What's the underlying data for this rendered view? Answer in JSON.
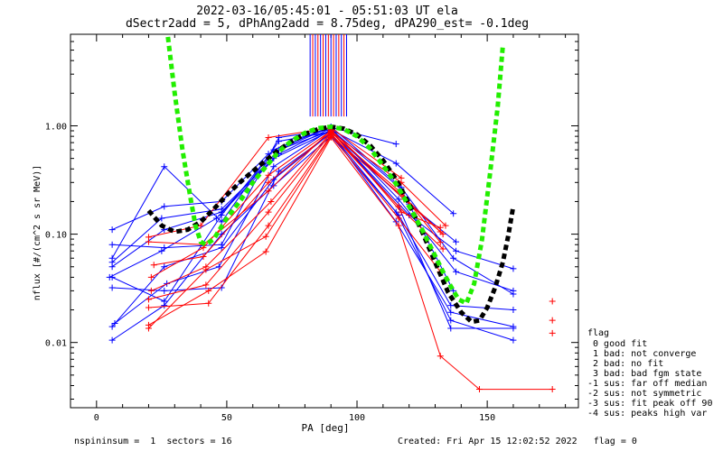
{
  "chart_data": {
    "type": "line",
    "title_line1": "2022-03-16/05:45:01 - 05:51:03 UT ela",
    "title_line2": "dSectr2add = 5, dPhAng2add = 8.75deg, dPA290_est=  -0.1deg",
    "xlabel": "PA [deg]",
    "ylabel": "nflux [#/(cm^2 s sr MeV)]",
    "xlim": [
      -10,
      185
    ],
    "ylim": [
      0.0025,
      7.0
    ],
    "yscale": "log",
    "xticks": [
      0,
      50,
      100,
      150
    ],
    "yticks": [
      {
        "v": 0.01,
        "label": "0.01"
      },
      {
        "v": 0.1,
        "label": "0.10"
      },
      {
        "v": 1.0,
        "label": "1.00"
      }
    ],
    "footer_left": "nspininsum =  1  sectors = 16",
    "footer_right": "Created: Fri Apr 15 12:02:52 2022   flag = 0",
    "legend": {
      "title": "flag",
      "entries": [
        " 0 good fit",
        " 1 bad: not converge",
        " 2 bad: no fit",
        " 3 bad: bad fgm state",
        "-1 sus: far off median",
        "-2 sus: not symmetric",
        "-3 sus: fit peak off 90",
        "-4 sus: peaks high var"
      ]
    },
    "colors": {
      "blue": "#0000ff",
      "red": "#ff0000",
      "green": "#22ee00",
      "black": "#000000"
    },
    "vertical_markers": {
      "y_bottom": 1.22,
      "blue": [
        82,
        84,
        86,
        88,
        90,
        92,
        94,
        96
      ],
      "red": [
        83,
        85,
        87,
        89,
        91,
        93,
        95
      ]
    },
    "series": [
      {
        "color": "blue",
        "points": [
          [
            6,
            0.11
          ],
          [
            26,
            0.18
          ],
          [
            48,
            0.2
          ],
          [
            66,
            0.55
          ],
          [
            90,
            0.97
          ],
          [
            115,
            0.68
          ]
        ]
      },
      {
        "color": "blue",
        "points": [
          [
            6,
            0.08
          ],
          [
            26,
            0.075
          ],
          [
            48,
            0.08
          ],
          [
            70,
            0.78
          ],
          [
            90,
            0.92
          ],
          [
            115,
            0.45
          ],
          [
            137,
            0.155
          ]
        ]
      },
      {
        "color": "blue",
        "points": [
          [
            6,
            0.06
          ],
          [
            26,
            0.42
          ],
          [
            48,
            0.13
          ],
          [
            70,
            0.72
          ],
          [
            90,
            0.88
          ],
          [
            120,
            0.19
          ],
          [
            138,
            0.085
          ]
        ]
      },
      {
        "color": "blue",
        "points": [
          [
            6,
            0.05
          ],
          [
            26,
            0.11
          ],
          [
            48,
            0.16
          ],
          [
            70,
            0.6
          ],
          [
            90,
            0.9
          ],
          [
            120,
            0.15
          ],
          [
            138,
            0.07
          ],
          [
            160,
            0.048
          ]
        ]
      },
      {
        "color": "blue",
        "points": [
          [
            5,
            0.04
          ],
          [
            25,
            0.07
          ],
          [
            46,
            0.14
          ],
          [
            70,
            0.55
          ],
          [
            90,
            0.95
          ],
          [
            116,
            0.21
          ],
          [
            138,
            0.045
          ],
          [
            160,
            0.03
          ]
        ]
      },
      {
        "color": "blue",
        "points": [
          [
            6,
            0.032
          ],
          [
            26,
            0.03
          ],
          [
            48,
            0.032
          ],
          [
            70,
            0.38
          ],
          [
            90,
            0.85
          ],
          [
            116,
            0.15
          ],
          [
            136,
            0.022
          ],
          [
            160,
            0.02
          ]
        ]
      },
      {
        "color": "blue",
        "points": [
          [
            6,
            0.014
          ],
          [
            26,
            0.05
          ],
          [
            48,
            0.075
          ],
          [
            68,
            0.32
          ],
          [
            90,
            0.86
          ],
          [
            115,
            0.13
          ],
          [
            136,
            0.019
          ],
          [
            160,
            0.014
          ]
        ]
      },
      {
        "color": "blue",
        "points": [
          [
            6,
            0.0105
          ],
          [
            26,
            0.022
          ],
          [
            48,
            0.1
          ],
          [
            68,
            0.28
          ],
          [
            90,
            0.8
          ],
          [
            115,
            0.16
          ],
          [
            136,
            0.016
          ],
          [
            160,
            0.0105
          ]
        ]
      },
      {
        "color": "blue",
        "points": [
          [
            7,
            0.015
          ],
          [
            27,
            0.035
          ],
          [
            47,
            0.05
          ],
          [
            68,
            0.42
          ],
          [
            90,
            0.93
          ],
          [
            117,
            0.26
          ],
          [
            137,
            0.03
          ]
        ]
      },
      {
        "color": "blue",
        "points": [
          [
            6,
            0.04
          ],
          [
            26,
            0.024
          ],
          [
            48,
            0.15
          ],
          [
            68,
            0.6
          ],
          [
            90,
            0.98
          ],
          [
            117,
            0.27
          ],
          [
            137,
            0.06
          ],
          [
            160,
            0.028
          ]
        ]
      },
      {
        "color": "blue",
        "points": [
          [
            6,
            0.055
          ],
          [
            25,
            0.14
          ],
          [
            48,
            0.17
          ],
          [
            68,
            0.5
          ],
          [
            90,
            0.9
          ],
          [
            116,
            0.18
          ],
          [
            136,
            0.0135
          ],
          [
            160,
            0.0135
          ]
        ]
      },
      {
        "color": "red",
        "points": [
          [
            20,
            0.094
          ],
          [
            40,
            0.12
          ],
          [
            66,
            0.78
          ],
          [
            90,
            0.96
          ],
          [
            117,
            0.33
          ]
        ]
      },
      {
        "color": "red",
        "points": [
          [
            20,
            0.085
          ],
          [
            41,
            0.08
          ],
          [
            66,
            0.25
          ],
          [
            90,
            0.92
          ],
          [
            118,
            0.21
          ],
          [
            132,
            0.105
          ]
        ]
      },
      {
        "color": "red",
        "points": [
          [
            21,
            0.04
          ],
          [
            41,
            0.075
          ],
          [
            66,
            0.35
          ],
          [
            90,
            0.9
          ],
          [
            117,
            0.16
          ],
          [
            132,
            0.115
          ]
        ]
      },
      {
        "color": "red",
        "points": [
          [
            21,
            0.03
          ],
          [
            42,
            0.05
          ],
          [
            67,
            0.2
          ],
          [
            90,
            0.87
          ],
          [
            117,
            0.24
          ],
          [
            132,
            0.084
          ]
        ]
      },
      {
        "color": "red",
        "points": [
          [
            20,
            0.025
          ],
          [
            42,
            0.034
          ],
          [
            66,
            0.16
          ],
          [
            90,
            0.85
          ],
          [
            116,
            0.18
          ],
          [
            133,
            0.073
          ]
        ]
      },
      {
        "color": "red",
        "points": [
          [
            20,
            0.021
          ],
          [
            43,
            0.023
          ],
          [
            66,
            0.12
          ],
          [
            90,
            0.82
          ],
          [
            116,
            0.14
          ],
          [
            132,
            0.045
          ]
        ]
      },
      {
        "color": "red",
        "points": [
          [
            20,
            0.0145
          ],
          [
            43,
            0.03
          ],
          [
            65,
            0.069
          ],
          [
            90,
            0.78
          ],
          [
            116,
            0.12
          ],
          [
            132,
            0.0075
          ],
          [
            147,
            0.0037
          ],
          [
            175,
            0.0037
          ]
        ]
      },
      {
        "color": "red",
        "points": [
          [
            20,
            0.0135
          ],
          [
            42,
            0.047
          ],
          [
            65,
            0.095
          ],
          [
            90,
            0.8
          ],
          [
            118,
            0.22
          ],
          [
            133,
            0.1
          ]
        ]
      },
      {
        "color": "red",
        "points": [
          [
            22,
            0.052
          ],
          [
            41,
            0.062
          ],
          [
            66,
            0.3
          ],
          [
            90,
            0.88
          ],
          [
            117,
            0.3
          ],
          [
            134,
            0.12
          ]
        ]
      }
    ],
    "isolated_red_marks": [
      [
        175,
        0.024
      ],
      [
        175,
        0.016
      ],
      [
        175,
        0.0122
      ]
    ],
    "fit_green": [
      [
        27,
        8.0
      ],
      [
        30,
        2.0
      ],
      [
        33,
        0.6
      ],
      [
        36,
        0.22
      ],
      [
        38,
        0.12
      ],
      [
        40,
        0.085
      ],
      [
        42,
        0.08
      ],
      [
        45,
        0.09
      ],
      [
        50,
        0.14
      ],
      [
        55,
        0.2
      ],
      [
        60,
        0.3
      ],
      [
        65,
        0.42
      ],
      [
        70,
        0.58
      ],
      [
        75,
        0.73
      ],
      [
        80,
        0.86
      ],
      [
        85,
        0.95
      ],
      [
        90,
        0.98
      ],
      [
        95,
        0.93
      ],
      [
        100,
        0.8
      ],
      [
        105,
        0.62
      ],
      [
        110,
        0.43
      ],
      [
        115,
        0.29
      ],
      [
        120,
        0.18
      ],
      [
        125,
        0.11
      ],
      [
        130,
        0.063
      ],
      [
        133,
        0.045
      ],
      [
        136,
        0.033
      ],
      [
        139,
        0.025
      ],
      [
        142,
        0.023
      ],
      [
        145,
        0.035
      ],
      [
        148,
        0.09
      ],
      [
        151,
        0.35
      ],
      [
        154,
        1.5
      ],
      [
        156,
        5.5
      ]
    ],
    "fit_black": [
      [
        20,
        0.165
      ],
      [
        25,
        0.12
      ],
      [
        30,
        0.105
      ],
      [
        35,
        0.11
      ],
      [
        40,
        0.13
      ],
      [
        45,
        0.17
      ],
      [
        50,
        0.23
      ],
      [
        55,
        0.3
      ],
      [
        60,
        0.38
      ],
      [
        65,
        0.48
      ],
      [
        70,
        0.6
      ],
      [
        75,
        0.72
      ],
      [
        80,
        0.84
      ],
      [
        85,
        0.93
      ],
      [
        90,
        0.98
      ],
      [
        95,
        0.94
      ],
      [
        100,
        0.83
      ],
      [
        105,
        0.66
      ],
      [
        110,
        0.48
      ],
      [
        115,
        0.32
      ],
      [
        120,
        0.19
      ],
      [
        125,
        0.105
      ],
      [
        130,
        0.055
      ],
      [
        135,
        0.029
      ],
      [
        140,
        0.019
      ],
      [
        144,
        0.0155
      ],
      [
        147,
        0.016
      ],
      [
        150,
        0.021
      ],
      [
        153,
        0.032
      ],
      [
        156,
        0.055
      ],
      [
        158,
        0.095
      ],
      [
        160,
        0.18
      ]
    ]
  }
}
